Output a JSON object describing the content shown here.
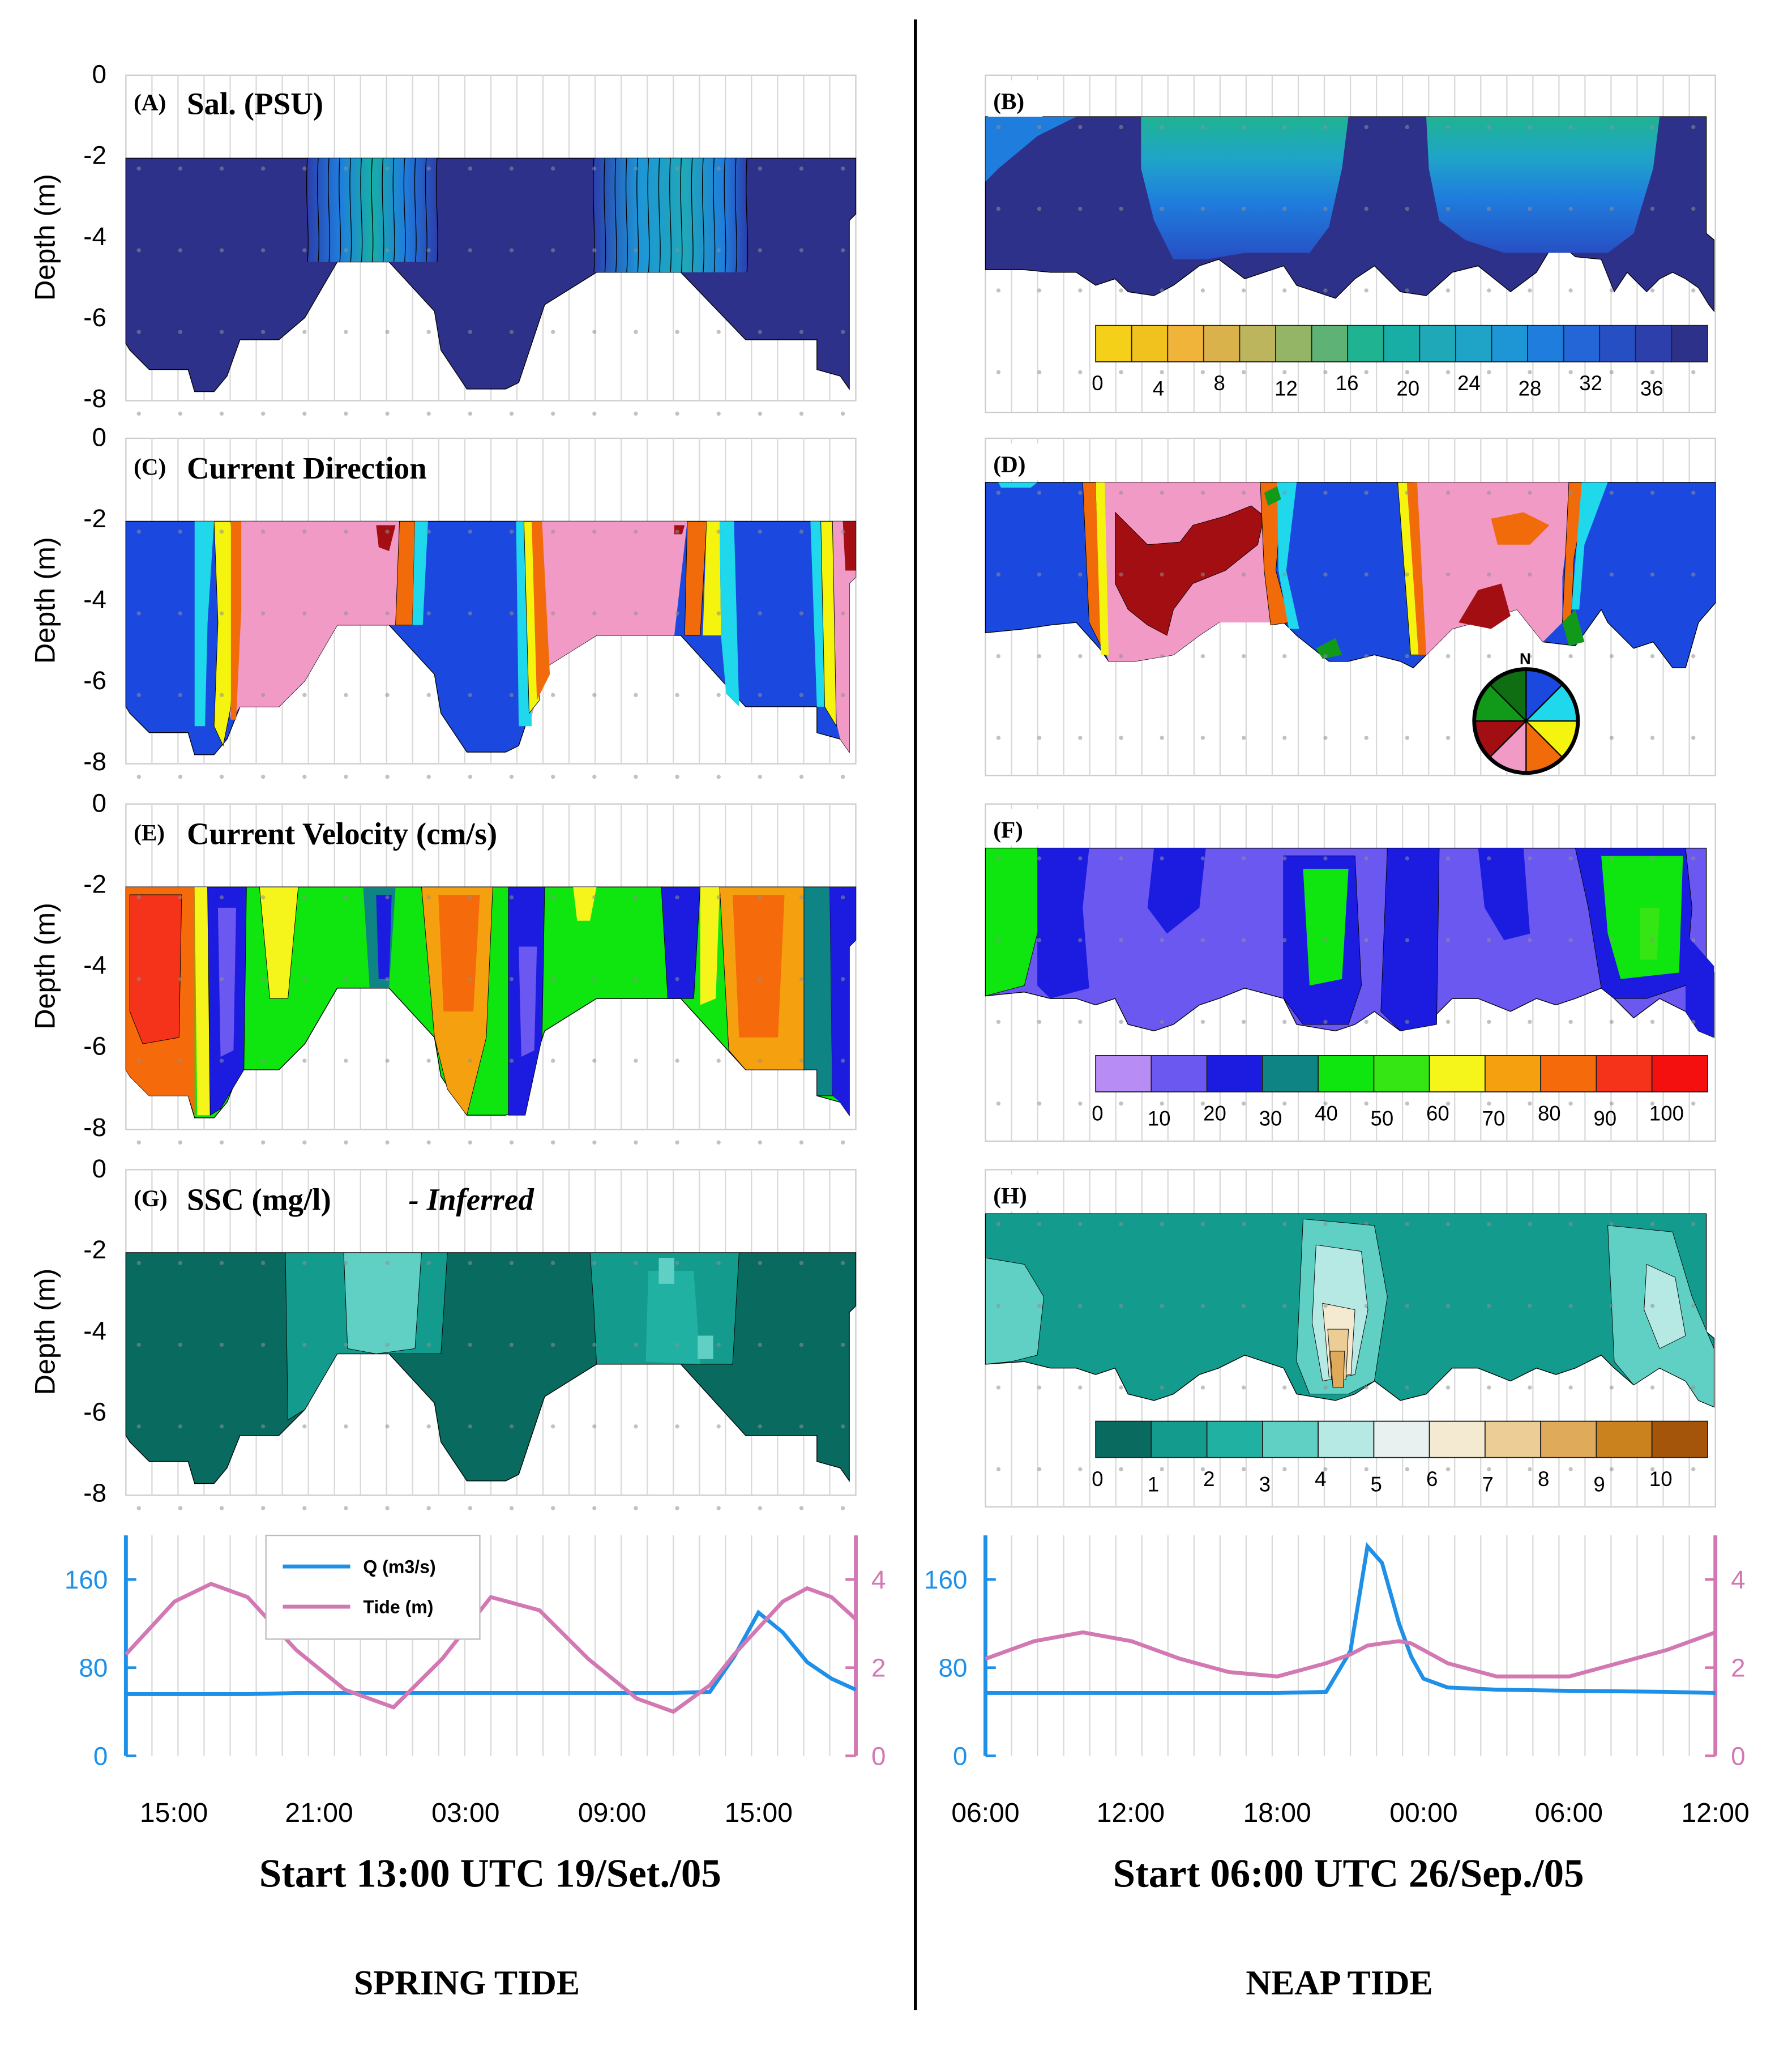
{
  "colors": {
    "sal_scale": [
      "#f5d018",
      "#f1c11d",
      "#f0b43a",
      "#d9b24c",
      "#bdb45e",
      "#94b466",
      "#5fb275",
      "#1fb392",
      "#18aea6",
      "#1fa8b8",
      "#1fa4c8",
      "#1e96d6",
      "#1f7ddd",
      "#2466d8",
      "#274fc4",
      "#2c3fab",
      "#2d318a"
    ],
    "dir_sectors": {
      "N-NE": "#1b49e0",
      "NE-E": "#20d8ec",
      "E-SE": "#f4f40e",
      "SE-S": "#f26b0b",
      "S-SW": "#f29ac6",
      "SW-W": "#a30e12",
      "W-NW": "#11991a",
      "NW-N": "#0f6e12"
    },
    "vel_scale": [
      "#b88cf5",
      "#6a58f0",
      "#1c1ce0",
      "#0f8484",
      "#0fe60f",
      "#36e614",
      "#f5f51c",
      "#f5a00e",
      "#f56a0a",
      "#f5321a",
      "#f51010"
    ],
    "ssc_scale": [
      "#096a5f",
      "#139b8d",
      "#20b1a3",
      "#60d0c4",
      "#b6e9e3",
      "#e8f1ef",
      "#f4ead2",
      "#ebcd95",
      "#dfaa5a",
      "#c9821e",
      "#a45509"
    ],
    "Q": "#1e90e8",
    "Tide": "#d278b2"
  },
  "panels": {
    "A": {
      "letter": "(A)",
      "title": "Sal. (PSU)"
    },
    "B": {
      "letter": "(B)",
      "title": ""
    },
    "C": {
      "letter": "(C)",
      "title": "Current Direction"
    },
    "D": {
      "letter": "(D)",
      "title": ""
    },
    "E": {
      "letter": "(E)",
      "title": "Current Velocity (cm/s)"
    },
    "F": {
      "letter": "(F)",
      "title": ""
    },
    "G": {
      "letter": "(G)",
      "title": "SSC (mg/l)",
      "suffix": "- Inferred"
    },
    "H": {
      "letter": "(H)",
      "title": ""
    }
  },
  "depth_axis": {
    "label": "Depth (m)",
    "ticks": [
      "0",
      "-2",
      "-4",
      "-6",
      "-8"
    ]
  },
  "colorbars": {
    "salinity": [
      "0",
      "4",
      "8",
      "12",
      "16",
      "20",
      "24",
      "28",
      "32",
      "36"
    ],
    "velocity": [
      "0",
      "10",
      "20",
      "30",
      "40",
      "50",
      "60",
      "70",
      "80",
      "90",
      "100"
    ],
    "ssc": [
      "0",
      "1",
      "2",
      "3",
      "4",
      "5",
      "6",
      "7",
      "8",
      "9",
      "10"
    ]
  },
  "compass_label": "N",
  "legend": {
    "q": "Q (m3/s)",
    "tide": "Tide (m)"
  },
  "flow_axis": {
    "left_ticks": [
      "0",
      "80",
      "160"
    ],
    "right_ticks": [
      "0",
      "2",
      "4"
    ]
  },
  "spring": {
    "time_ticks": [
      "15:00",
      "21:00",
      "03:00",
      "09:00",
      "15:00"
    ],
    "start_caption": "Start 13:00 UTC 19/Set./05",
    "name": "SPRING TIDE"
  },
  "neap": {
    "time_ticks": [
      "06:00",
      "12:00",
      "18:00",
      "00:00",
      "06:00",
      "12:00"
    ],
    "start_caption": "Start 06:00 UTC 26/Sep./05",
    "name": "NEAP TIDE"
  },
  "chart_data": [
    {
      "type": "heatmap",
      "panel": "A",
      "title": "Sal. (PSU)",
      "ylabel": "Depth (m)",
      "ylim": [
        -8,
        0
      ],
      "period": "spring",
      "xlim_hours": [
        13,
        43
      ]
    },
    {
      "type": "heatmap",
      "panel": "B",
      "ylim": [
        -8,
        0
      ],
      "period": "neap",
      "colorbar_range": [
        0,
        38
      ]
    },
    {
      "type": "heatmap",
      "panel": "C",
      "title": "Current Direction",
      "ylabel": "Depth (m)",
      "ylim": [
        -8,
        0
      ],
      "period": "spring"
    },
    {
      "type": "heatmap",
      "panel": "D",
      "ylim": [
        -8,
        0
      ],
      "period": "neap"
    },
    {
      "type": "heatmap",
      "panel": "E",
      "title": "Current Velocity (cm/s)",
      "ylabel": "Depth (m)",
      "ylim": [
        -8,
        0
      ],
      "period": "spring"
    },
    {
      "type": "heatmap",
      "panel": "F",
      "ylim": [
        -8,
        0
      ],
      "period": "neap",
      "colorbar_range": [
        0,
        110
      ]
    },
    {
      "type": "heatmap",
      "panel": "G",
      "title": "SSC (mg/l) - Inferred",
      "ylabel": "Depth (m)",
      "ylim": [
        -8,
        0
      ],
      "period": "spring"
    },
    {
      "type": "heatmap",
      "panel": "H",
      "ylim": [
        -8,
        0
      ],
      "period": "neap",
      "colorbar_range": [
        0,
        11
      ]
    },
    {
      "type": "line",
      "panel": "spring-series",
      "x_hours": [
        13,
        15,
        16.5,
        18,
        20,
        22,
        24,
        26,
        28,
        30,
        32,
        34,
        35.5,
        37,
        38,
        39,
        40,
        41,
        42,
        43
      ],
      "series": [
        {
          "name": "Q (m3/s)",
          "axis": "left",
          "ylim": [
            0,
            200
          ],
          "values": [
            56,
            56,
            56,
            56,
            57,
            57,
            57,
            57,
            57,
            57,
            57,
            57,
            57,
            58,
            90,
            130,
            112,
            85,
            70,
            60
          ]
        },
        {
          "name": "Tide (m)",
          "axis": "right",
          "ylim": [
            0,
            5
          ],
          "values": [
            2.3,
            3.5,
            3.9,
            3.6,
            2.4,
            1.5,
            1.1,
            2.2,
            3.6,
            3.3,
            2.2,
            1.3,
            1.0,
            1.6,
            2.3,
            2.9,
            3.5,
            3.8,
            3.6,
            3.1
          ]
        }
      ]
    },
    {
      "type": "line",
      "panel": "neap-series",
      "x_hours": [
        6,
        8,
        10,
        12,
        14,
        16,
        18,
        20,
        21,
        21.7,
        22.3,
        23,
        23.5,
        24,
        25,
        27,
        30,
        34,
        36
      ],
      "series": [
        {
          "name": "Q (m3/s)",
          "axis": "left",
          "ylim": [
            0,
            200
          ],
          "values": [
            57,
            57,
            57,
            57,
            57,
            57,
            57,
            58,
            95,
            190,
            175,
            120,
            90,
            70,
            62,
            60,
            59,
            58,
            57
          ]
        },
        {
          "name": "Tide (m)",
          "axis": "right",
          "ylim": [
            0,
            5
          ],
          "values": [
            2.2,
            2.6,
            2.8,
            2.6,
            2.2,
            1.9,
            1.8,
            2.1,
            2.3,
            2.5,
            2.55,
            2.6,
            2.55,
            2.4,
            2.1,
            1.8,
            1.8,
            2.4,
            2.8
          ]
        }
      ]
    }
  ]
}
